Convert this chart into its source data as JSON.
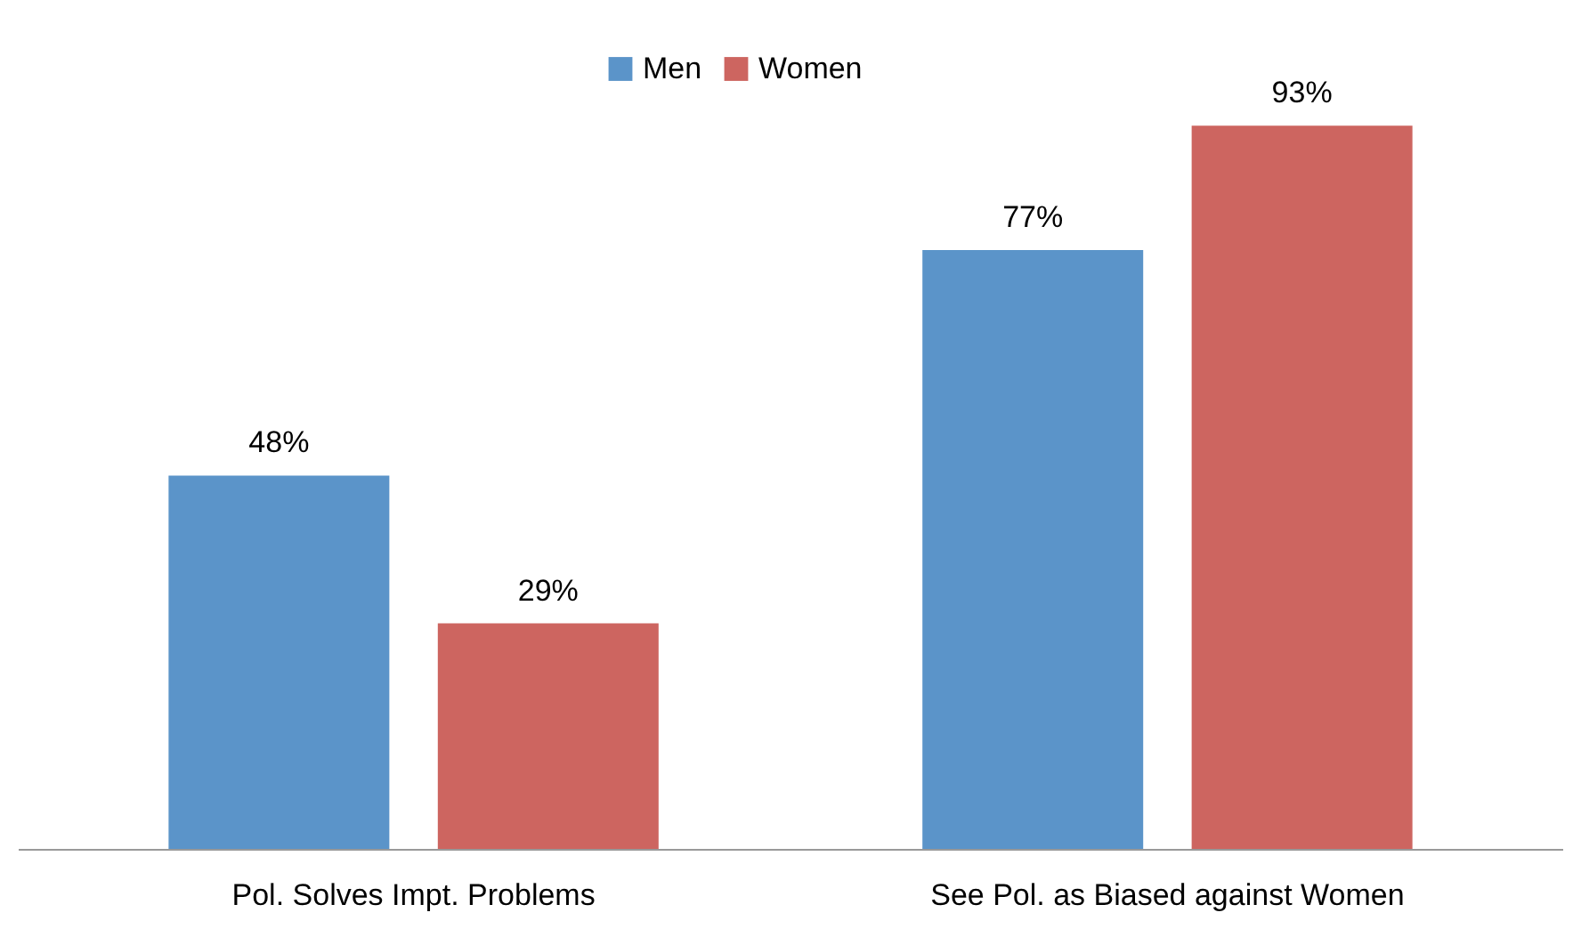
{
  "chart_data": {
    "type": "bar",
    "categories": [
      "Pol. Solves Impt. Problems",
      "See Pol. as Biased against Women"
    ],
    "series": [
      {
        "name": "Men",
        "color": "#5b94c9",
        "values": [
          48,
          77
        ],
        "value_labels": [
          "48%",
          "77%"
        ]
      },
      {
        "name": "Women",
        "color": "#cd6560",
        "values": [
          29,
          93
        ],
        "value_labels": [
          "29%",
          "93%"
        ]
      }
    ],
    "legend": "top"
  }
}
